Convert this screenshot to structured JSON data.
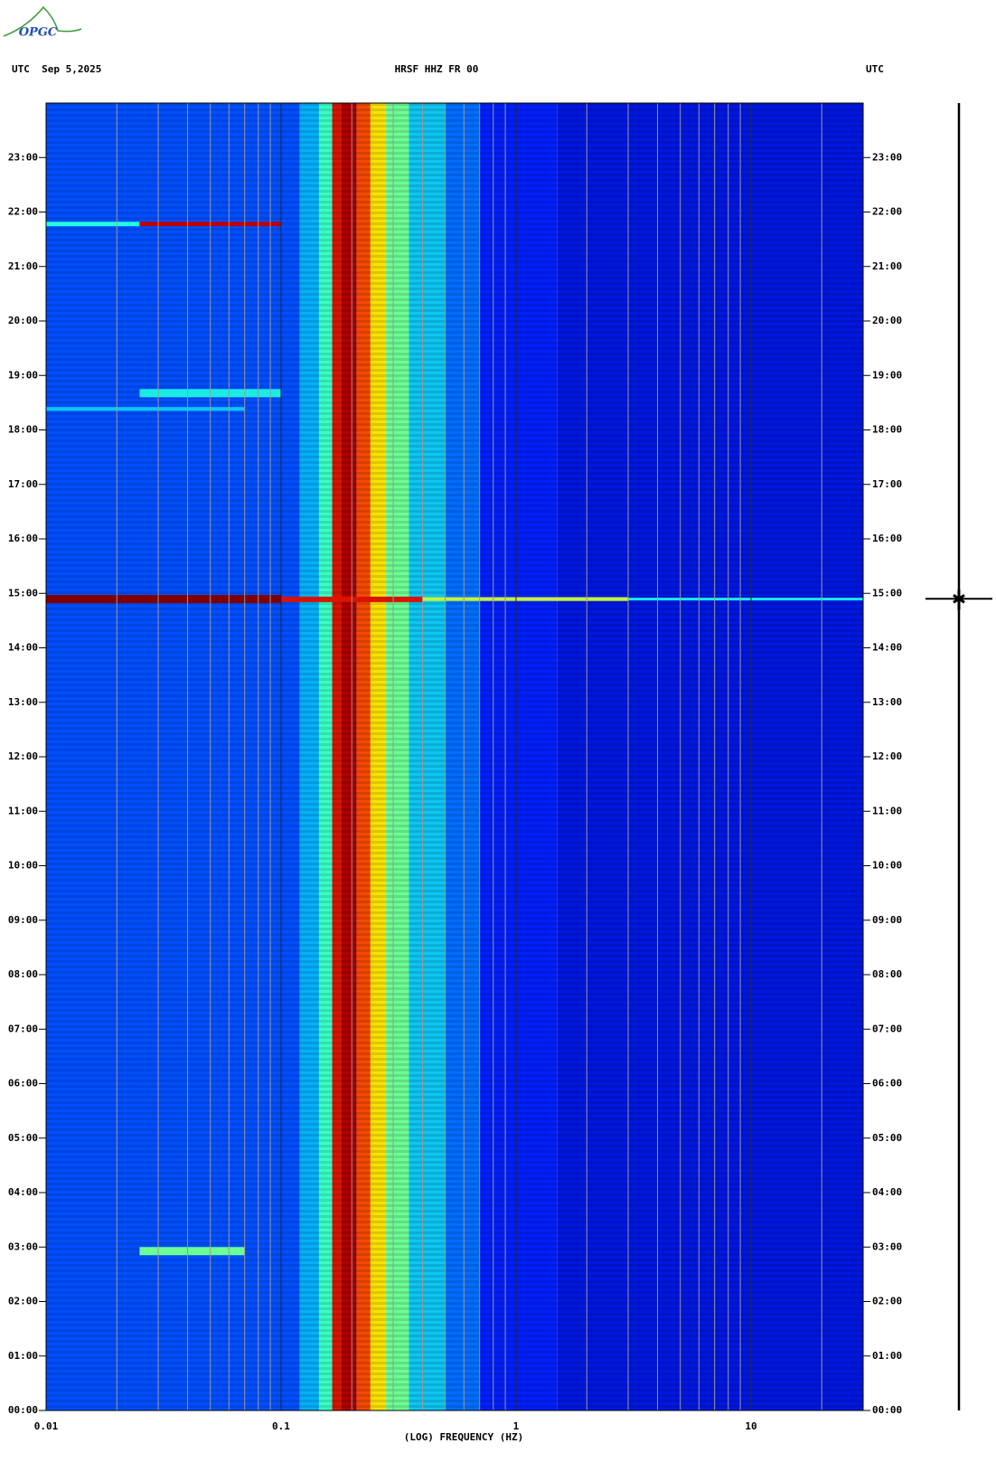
{
  "chart_data": {
    "type": "spectrogram",
    "logo": "OPGC",
    "left_title": "UTC  Sep 5,2025",
    "title": "HRSF HHZ FR 00",
    "right_title": "UTC",
    "xlabel": "(LOG) FREQUENCY (HZ)",
    "xscale": "log",
    "xlim": [
      0.01,
      30
    ],
    "xticks": [
      0.01,
      0.1,
      1,
      10
    ],
    "xgrid": [
      0.02,
      0.03,
      0.04,
      0.05,
      0.06,
      0.07,
      0.08,
      0.09,
      0.1,
      0.2,
      0.3,
      0.4,
      0.5,
      0.6,
      0.7,
      0.8,
      0.9,
      1,
      2,
      3,
      4,
      5,
      6,
      7,
      8,
      9,
      10,
      20
    ],
    "ylim": [
      0,
      24
    ],
    "yticks": [
      {
        "value": 0,
        "label": "00:00"
      },
      {
        "value": 1,
        "label": "01:00"
      },
      {
        "value": 2,
        "label": "02:00"
      },
      {
        "value": 3,
        "label": "03:00"
      },
      {
        "value": 4,
        "label": "04:00"
      },
      {
        "value": 5,
        "label": "05:00"
      },
      {
        "value": 6,
        "label": "06:00"
      },
      {
        "value": 7,
        "label": "07:00"
      },
      {
        "value": 8,
        "label": "08:00"
      },
      {
        "value": 9,
        "label": "09:00"
      },
      {
        "value": 10,
        "label": "10:00"
      },
      {
        "value": 11,
        "label": "11:00"
      },
      {
        "value": 12,
        "label": "12:00"
      },
      {
        "value": 13,
        "label": "13:00"
      },
      {
        "value": 14,
        "label": "14:00"
      },
      {
        "value": 15,
        "label": "15:00"
      },
      {
        "value": 16,
        "label": "16:00"
      },
      {
        "value": 17,
        "label": "17:00"
      },
      {
        "value": 18,
        "label": "18:00"
      },
      {
        "value": 19,
        "label": "19:00"
      },
      {
        "value": 20,
        "label": "20:00"
      },
      {
        "value": 21,
        "label": "21:00"
      },
      {
        "value": 22,
        "label": "22:00"
      },
      {
        "value": 23,
        "label": "23:00"
      }
    ],
    "colormap": [
      "#00008f",
      "#0020ff",
      "#00a0ff",
      "#20ffdf",
      "#9fff60",
      "#ffe000",
      "#ff6000",
      "#d00000",
      "#800000"
    ],
    "profile": [
      {
        "f0": 0.01,
        "f1": 0.12,
        "level": 0.17
      },
      {
        "f0": 0.12,
        "f1": 0.145,
        "level": 0.27
      },
      {
        "f0": 0.145,
        "f1": 0.165,
        "level": 0.4
      },
      {
        "f0": 0.165,
        "f1": 0.18,
        "level": 0.85
      },
      {
        "f0": 0.18,
        "f1": 0.21,
        "level": 0.93
      },
      {
        "f0": 0.21,
        "f1": 0.24,
        "level": 0.78
      },
      {
        "f0": 0.24,
        "f1": 0.28,
        "level": 0.62
      },
      {
        "f0": 0.28,
        "f1": 0.35,
        "level": 0.45
      },
      {
        "f0": 0.35,
        "f1": 0.5,
        "level": 0.3
      },
      {
        "f0": 0.5,
        "f1": 0.7,
        "level": 0.2
      },
      {
        "f0": 0.7,
        "f1": 1.5,
        "level": 0.12
      },
      {
        "f0": 1.5,
        "f1": 30,
        "level": 0.09
      }
    ],
    "events": [
      {
        "t0": 21.74,
        "t1": 21.82,
        "f0": 0.01,
        "f1": 0.025,
        "level": 0.38
      },
      {
        "t0": 21.74,
        "t1": 21.82,
        "f0": 0.025,
        "f1": 0.1,
        "level": 0.9
      },
      {
        "t0": 18.6,
        "t1": 18.75,
        "f0": 0.025,
        "f1": 0.1,
        "level": 0.35
      },
      {
        "t0": 18.35,
        "t1": 18.42,
        "f0": 0.01,
        "f1": 0.07,
        "level": 0.3
      },
      {
        "t0": 2.85,
        "t1": 3.0,
        "f0": 0.025,
        "f1": 0.07,
        "level": 0.45
      },
      {
        "t0": 14.82,
        "t1": 14.97,
        "f0": 0.01,
        "f1": 0.1,
        "level": 1.0
      },
      {
        "t0": 14.84,
        "t1": 14.94,
        "f0": 0.1,
        "f1": 0.4,
        "level": 0.85
      },
      {
        "t0": 14.86,
        "t1": 14.93,
        "f0": 0.4,
        "f1": 3,
        "level": 0.55
      },
      {
        "t0": 14.87,
        "t1": 14.92,
        "f0": 3,
        "f1": 30,
        "level": 0.35
      }
    ],
    "trace_event_time": 14.9
  }
}
